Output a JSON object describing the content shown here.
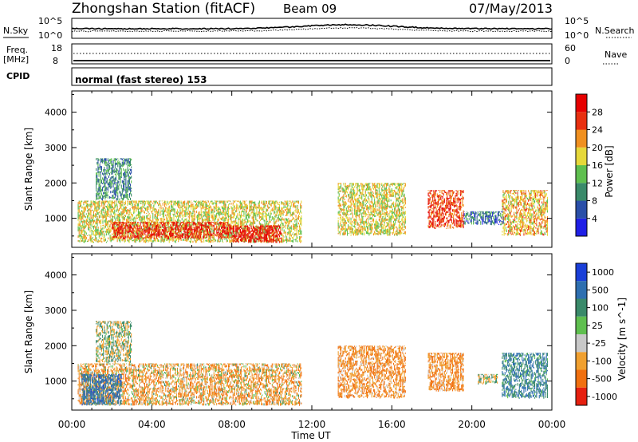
{
  "header": {
    "station": "Zhongshan Station (fitACF)",
    "beam": "Beam 09",
    "date": "07/May/2013"
  },
  "noise_panel": {
    "left_label": "N.Sky",
    "right_label": "N.Search",
    "left_ticks": [
      "10^5",
      "10^0"
    ],
    "right_ticks": [
      "10^5",
      "10^0"
    ]
  },
  "freq_panel": {
    "left_label_line1": "Freq.",
    "left_label_line2": "[MHz]",
    "left_ticks": [
      "18",
      "8"
    ],
    "right_label": "Nave",
    "right_ticks": [
      "60",
      "0"
    ]
  },
  "cpid": {
    "label": "CPID",
    "text": "normal (fast stereo) 153"
  },
  "axes": {
    "ylabel": "Slant Range [km]",
    "y_ticks": [
      "1000",
      "2000",
      "3000",
      "4000"
    ],
    "x_ticks": [
      "00:00",
      "04:00",
      "08:00",
      "12:00",
      "16:00",
      "20:00",
      "00:00"
    ],
    "xlabel": "Time UT"
  },
  "power_scale": {
    "label": "Power [dB]",
    "ticks": [
      "4",
      "8",
      "12",
      "16",
      "20",
      "24",
      "28"
    ],
    "colors": [
      "#1f1fe6",
      "#2a4fa8",
      "#3a8a6a",
      "#5fbf4f",
      "#e6d83a",
      "#f09020",
      "#e83010",
      "#e60000"
    ]
  },
  "velocity_scale": {
    "label": "Velocity [m s^-1]",
    "ticks": [
      "1000",
      "500",
      "100",
      "25",
      "-25",
      "-100",
      "-500",
      "-1000"
    ],
    "colors": [
      "#1a3fd8",
      "#2e6fb0",
      "#3a8a6a",
      "#5fbf4f",
      "#c8c8c8",
      "#f0a030",
      "#f07010",
      "#e62010"
    ]
  },
  "chart_data": [
    {
      "type": "heatmap",
      "title": "Power",
      "xlabel": "Time UT",
      "ylabel": "Slant Range [km]",
      "xlim": [
        "00:00",
        "24:00"
      ],
      "ylim": [
        180,
        4600
      ],
      "colorbar_label": "Power [dB]",
      "colorbar_range": [
        0,
        32
      ],
      "echo_regions": [
        {
          "t_start": 0.3,
          "t_end": 11.5,
          "range_min": 300,
          "range_max": 1500,
          "typical_db": 18
        },
        {
          "t_start": 1.2,
          "t_end": 3.0,
          "range_min": 1500,
          "range_max": 2700,
          "typical_db": 10
        },
        {
          "t_start": 2.0,
          "t_end": 8.0,
          "range_min": 400,
          "range_max": 900,
          "typical_db": 28
        },
        {
          "t_start": 8.0,
          "t_end": 10.5,
          "range_min": 300,
          "range_max": 800,
          "typical_db": 30
        },
        {
          "t_start": 13.3,
          "t_end": 16.7,
          "range_min": 500,
          "range_max": 2000,
          "typical_db": 18
        },
        {
          "t_start": 17.8,
          "t_end": 19.6,
          "range_min": 700,
          "range_max": 1800,
          "typical_db": 26
        },
        {
          "t_start": 19.6,
          "t_end": 21.6,
          "range_min": 800,
          "range_max": 1200,
          "typical_db": 8
        },
        {
          "t_start": 21.5,
          "t_end": 23.8,
          "range_min": 500,
          "range_max": 1800,
          "typical_db": 20
        }
      ]
    },
    {
      "type": "heatmap",
      "title": "Velocity",
      "xlabel": "Time UT",
      "ylabel": "Slant Range [km]",
      "xlim": [
        "00:00",
        "24:00"
      ],
      "ylim": [
        180,
        4600
      ],
      "colorbar_label": "Velocity [m s^-1]",
      "colorbar_range": [
        -1000,
        1000
      ],
      "echo_regions": [
        {
          "t_start": 0.3,
          "t_end": 11.5,
          "range_min": 300,
          "range_max": 1500,
          "typical_velocity": -200
        },
        {
          "t_start": 1.2,
          "t_end": 3.0,
          "range_min": 1500,
          "range_max": 2700,
          "typical_velocity": 0
        },
        {
          "t_start": 0.5,
          "t_end": 2.5,
          "range_min": 300,
          "range_max": 1200,
          "typical_velocity": 500
        },
        {
          "t_start": 13.3,
          "t_end": 16.7,
          "range_min": 500,
          "range_max": 2000,
          "typical_velocity": -300
        },
        {
          "t_start": 17.8,
          "t_end": 19.6,
          "range_min": 700,
          "range_max": 1800,
          "typical_velocity": -300
        },
        {
          "t_start": 20.3,
          "t_end": 21.3,
          "range_min": 900,
          "range_max": 1200,
          "typical_velocity": 0
        },
        {
          "t_start": 21.5,
          "t_end": 23.8,
          "range_min": 500,
          "range_max": 1800,
          "typical_velocity": 300
        }
      ]
    }
  ]
}
